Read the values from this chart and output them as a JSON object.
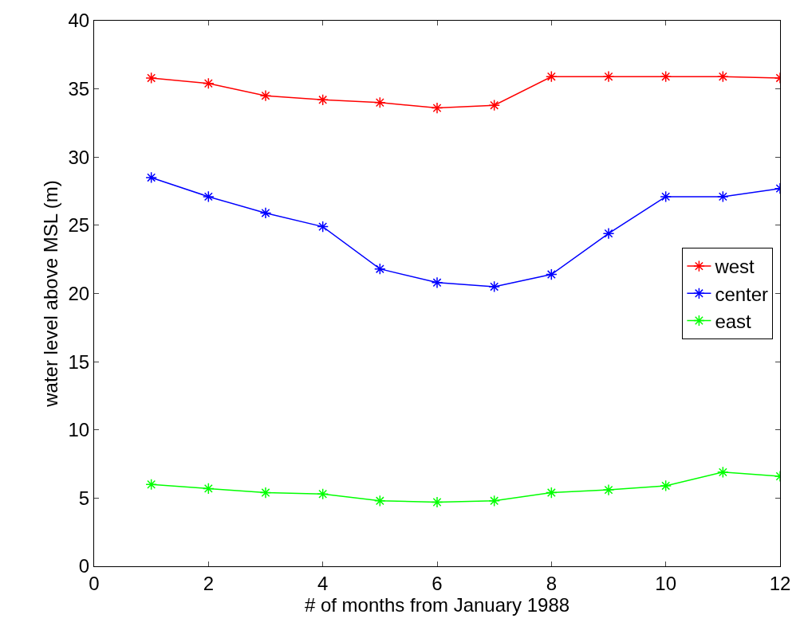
{
  "chart_data": {
    "type": "line",
    "xlabel": "# of months from January 1988",
    "ylabel": "water level above MSL (m)",
    "x": [
      1,
      2,
      3,
      4,
      5,
      6,
      7,
      8,
      9,
      10,
      11,
      12
    ],
    "series": [
      {
        "name": "west",
        "color": "#ff0000",
        "values": [
          35.8,
          35.4,
          34.5,
          34.2,
          34.0,
          33.6,
          33.8,
          35.9,
          35.9,
          35.9,
          35.9,
          35.8
        ]
      },
      {
        "name": "center",
        "color": "#0000ff",
        "values": [
          28.5,
          27.1,
          25.9,
          24.9,
          21.8,
          20.8,
          20.5,
          21.4,
          24.4,
          27.1,
          27.1,
          27.7
        ]
      },
      {
        "name": "east",
        "color": "#00ff00",
        "values": [
          6.0,
          5.7,
          5.4,
          5.3,
          4.8,
          4.7,
          4.8,
          5.4,
          5.6,
          5.9,
          6.9,
          6.6
        ]
      }
    ],
    "xlim": [
      0,
      12
    ],
    "xticks": [
      0,
      2,
      4,
      6,
      8,
      10,
      12
    ],
    "ylim": [
      0,
      40
    ],
    "yticks": [
      0,
      5,
      10,
      15,
      20,
      25,
      30,
      35,
      40
    ],
    "legend": "right",
    "marker": "cross",
    "line_style": "solid"
  }
}
